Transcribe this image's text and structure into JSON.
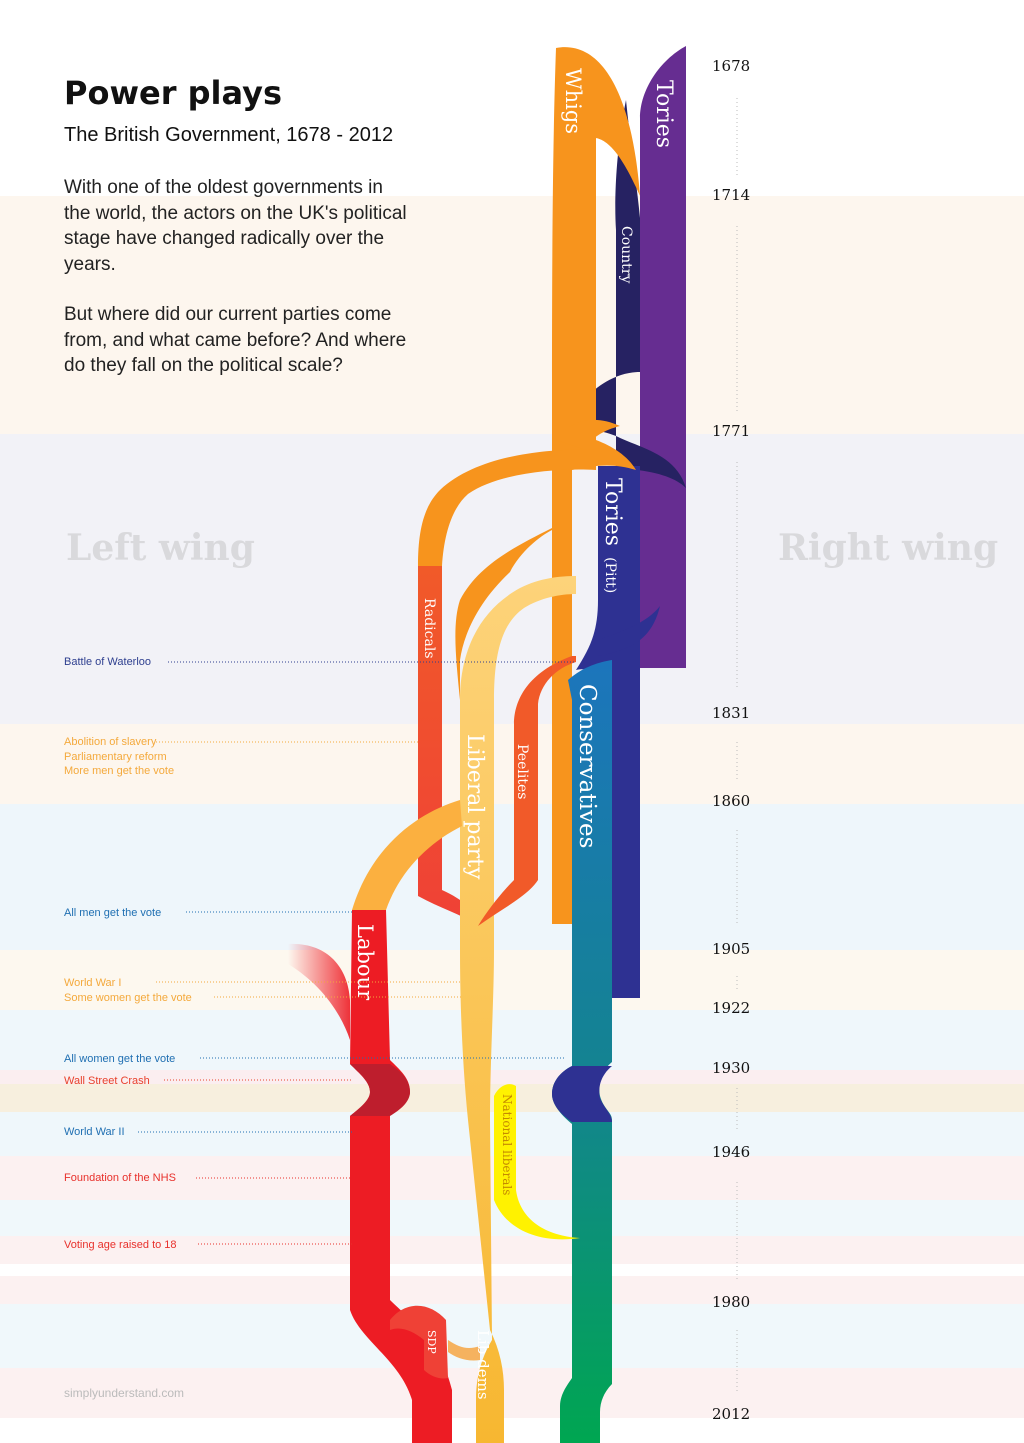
{
  "title": "Power plays",
  "subtitle": "The British Government, 1678 - 2012",
  "intro": {
    "p1_lines": [
      "With one of the oldest governments in",
      "the world, the actors on the UK's political",
      "stage have changed radically over the",
      "years."
    ],
    "p2_lines": [
      "But where did our current parties come",
      "from, and what came before? And where",
      "do they fall on the political scale?"
    ]
  },
  "axis": {
    "left_label": "Left wing",
    "right_label": "Right wing"
  },
  "years": [
    "1678",
    "1714",
    "1771",
    "1831",
    "1860",
    "1905",
    "1922",
    "1930",
    "1946",
    "1980",
    "2012"
  ],
  "events": [
    {
      "lines": [
        "Battle of Waterloo"
      ],
      "color": "#2e3f8f"
    },
    {
      "lines": [
        "Abolition of slavery",
        "Parliamentary reform",
        "More men get the vote"
      ],
      "color": "#f4a93c"
    },
    {
      "lines": [
        "All men get the vote"
      ],
      "color": "#1f6fb2"
    },
    {
      "lines": [
        "World War I",
        "Some women get the vote"
      ],
      "color": "#f4a93c"
    },
    {
      "lines": [
        "All women get the vote"
      ],
      "color": "#1f6fb2"
    },
    {
      "lines": [
        "Wall Street Crash"
      ],
      "color": "#e8412c"
    },
    {
      "lines": [
        "World War II"
      ],
      "color": "#1f6fb2"
    },
    {
      "lines": [
        "Foundation of the NHS"
      ],
      "color": "#e8312c"
    },
    {
      "lines": [
        "Voting age raised to 18"
      ],
      "color": "#e8312c"
    }
  ],
  "parties": {
    "whigs": "Whigs",
    "tories": "Tories",
    "country": "Country",
    "tories_pitt": "Tories",
    "tories_pitt_suffix": "(Pitt)",
    "radicals": "Radicals",
    "conservatives": "Conservatives",
    "liberal_party": "Liberal party",
    "peelites": "Peelites",
    "labour": "Labour",
    "national_liberals": "National liberals",
    "sdp": "SDP",
    "lib_dems": "Lib dems"
  },
  "colors": {
    "whigs": "#f7941d",
    "tories": "#662d91",
    "country": "#262262",
    "tories_pitt": "#2e3192",
    "radicals": "#ef4136",
    "liberal": "#fbb040",
    "peelites": "#f15a29",
    "conservatives": "#1c75bc",
    "labour": "#ed1c24",
    "national_liberals": "#fff200",
    "modern_conservatives": "#00a651"
  },
  "credit": "simplyunderstand.com"
}
